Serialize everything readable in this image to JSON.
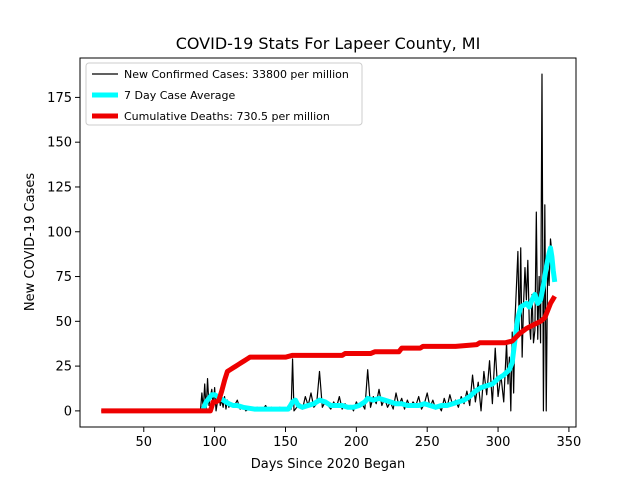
{
  "chart_data": {
    "type": "line",
    "title": "COVID-19 Stats For Lapeer County, MI",
    "xlabel": "Days Since 2020 Began",
    "ylabel": "New COVID-19 Cases",
    "xlim": [
      5,
      355
    ],
    "ylim": [
      -9,
      197
    ],
    "xticks": [
      50,
      100,
      150,
      200,
      250,
      300,
      350
    ],
    "yticks": [
      0,
      25,
      50,
      75,
      100,
      125,
      150,
      175
    ],
    "grid": false,
    "legend_position": "top-left",
    "series": [
      {
        "name": "New Confirmed Cases: 33800 per million",
        "color": "#000000",
        "width": 1.2,
        "points": [
          [
            20,
            0
          ],
          [
            50,
            0
          ],
          [
            88,
            0
          ],
          [
            89,
            1
          ],
          [
            90,
            0
          ],
          [
            91,
            10
          ],
          [
            92,
            1
          ],
          [
            93,
            15
          ],
          [
            94,
            0
          ],
          [
            95,
            18
          ],
          [
            96,
            3
          ],
          [
            97,
            8
          ],
          [
            98,
            12
          ],
          [
            99,
            2
          ],
          [
            100,
            13
          ],
          [
            101,
            0
          ],
          [
            102,
            5
          ],
          [
            103,
            9
          ],
          [
            104,
            3
          ],
          [
            105,
            6
          ],
          [
            106,
            2
          ],
          [
            107,
            8
          ],
          [
            108,
            1
          ],
          [
            109,
            6
          ],
          [
            110,
            2
          ],
          [
            112,
            4
          ],
          [
            114,
            3
          ],
          [
            116,
            6
          ],
          [
            118,
            1
          ],
          [
            120,
            3
          ],
          [
            122,
            0
          ],
          [
            124,
            1
          ],
          [
            126,
            2
          ],
          [
            128,
            0
          ],
          [
            130,
            2
          ],
          [
            132,
            0
          ],
          [
            134,
            1
          ],
          [
            136,
            3
          ],
          [
            138,
            0
          ],
          [
            140,
            2
          ],
          [
            142,
            1
          ],
          [
            144,
            0
          ],
          [
            146,
            2
          ],
          [
            148,
            1
          ],
          [
            150,
            0
          ],
          [
            152,
            3
          ],
          [
            154,
            1
          ],
          [
            155,
            29
          ],
          [
            156,
            0
          ],
          [
            158,
            2
          ],
          [
            160,
            4
          ],
          [
            162,
            1
          ],
          [
            164,
            8
          ],
          [
            166,
            3
          ],
          [
            168,
            10
          ],
          [
            170,
            2
          ],
          [
            172,
            4
          ],
          [
            174,
            22
          ],
          [
            176,
            2
          ],
          [
            178,
            5
          ],
          [
            180,
            3
          ],
          [
            182,
            1
          ],
          [
            184,
            5
          ],
          [
            186,
            2
          ],
          [
            188,
            8
          ],
          [
            190,
            1
          ],
          [
            192,
            4
          ],
          [
            194,
            2
          ],
          [
            196,
            3
          ],
          [
            198,
            0
          ],
          [
            200,
            5
          ],
          [
            202,
            2
          ],
          [
            204,
            4
          ],
          [
            206,
            1
          ],
          [
            208,
            23
          ],
          [
            210,
            2
          ],
          [
            212,
            8
          ],
          [
            214,
            4
          ],
          [
            216,
            12
          ],
          [
            218,
            3
          ],
          [
            220,
            7
          ],
          [
            222,
            2
          ],
          [
            224,
            5
          ],
          [
            226,
            1
          ],
          [
            228,
            10
          ],
          [
            230,
            3
          ],
          [
            232,
            7
          ],
          [
            234,
            1
          ],
          [
            236,
            6
          ],
          [
            238,
            2
          ],
          [
            240,
            5
          ],
          [
            242,
            3
          ],
          [
            244,
            8
          ],
          [
            246,
            1
          ],
          [
            248,
            4
          ],
          [
            250,
            10
          ],
          [
            252,
            2
          ],
          [
            254,
            6
          ],
          [
            256,
            1
          ],
          [
            258,
            3
          ],
          [
            260,
            0
          ],
          [
            262,
            7
          ],
          [
            264,
            2
          ],
          [
            266,
            9
          ],
          [
            268,
            3
          ],
          [
            270,
            6
          ],
          [
            272,
            2
          ],
          [
            274,
            8
          ],
          [
            276,
            4
          ],
          [
            278,
            11
          ],
          [
            280,
            3
          ],
          [
            282,
            20
          ],
          [
            284,
            5
          ],
          [
            286,
            16
          ],
          [
            288,
            0
          ],
          [
            290,
            22
          ],
          [
            292,
            9
          ],
          [
            294,
            28
          ],
          [
            296,
            4
          ],
          [
            298,
            35
          ],
          [
            300,
            8
          ],
          [
            302,
            20
          ],
          [
            304,
            5
          ],
          [
            306,
            38
          ],
          [
            307,
            15
          ],
          [
            308,
            30
          ],
          [
            309,
            0
          ],
          [
            310,
            44
          ],
          [
            311,
            10
          ],
          [
            312,
            52
          ],
          [
            313,
            70
          ],
          [
            314,
            89
          ],
          [
            315,
            45
          ],
          [
            316,
            91
          ],
          [
            317,
            30
          ],
          [
            318,
            60
          ],
          [
            319,
            80
          ],
          [
            320,
            62
          ],
          [
            321,
            84
          ],
          [
            322,
            50
          ],
          [
            323,
            40
          ],
          [
            324,
            65
          ],
          [
            325,
            38
          ],
          [
            326,
            45
          ],
          [
            327,
            111
          ],
          [
            328,
            40
          ],
          [
            329,
            75
          ],
          [
            330,
            38
          ],
          [
            331,
            188
          ],
          [
            332,
            0
          ],
          [
            333,
            115
          ],
          [
            334,
            0
          ],
          [
            335,
            83
          ],
          [
            336,
            70
          ],
          [
            337,
            96
          ],
          [
            338,
            88
          ]
        ]
      },
      {
        "name": "7 Day Case Average",
        "color": "#00ffff",
        "width": 5,
        "points": [
          [
            92,
            1
          ],
          [
            94,
            5
          ],
          [
            96,
            7
          ],
          [
            98,
            9
          ],
          [
            100,
            9
          ],
          [
            102,
            8
          ],
          [
            104,
            7
          ],
          [
            106,
            6
          ],
          [
            108,
            5
          ],
          [
            110,
            4
          ],
          [
            113,
            3
          ],
          [
            116,
            3
          ],
          [
            120,
            2
          ],
          [
            124,
            1.5
          ],
          [
            128,
            1
          ],
          [
            132,
            1
          ],
          [
            136,
            1
          ],
          [
            140,
            1
          ],
          [
            144,
            1
          ],
          [
            148,
            1
          ],
          [
            152,
            1
          ],
          [
            155,
            5
          ],
          [
            157,
            6
          ],
          [
            159,
            3
          ],
          [
            162,
            2
          ],
          [
            166,
            3
          ],
          [
            170,
            4
          ],
          [
            174,
            6
          ],
          [
            178,
            5
          ],
          [
            182,
            3
          ],
          [
            186,
            3
          ],
          [
            190,
            3
          ],
          [
            194,
            2
          ],
          [
            198,
            2
          ],
          [
            202,
            3
          ],
          [
            206,
            5
          ],
          [
            208,
            7
          ],
          [
            212,
            6
          ],
          [
            216,
            7
          ],
          [
            220,
            6
          ],
          [
            224,
            5
          ],
          [
            228,
            4
          ],
          [
            232,
            4
          ],
          [
            236,
            3
          ],
          [
            240,
            3
          ],
          [
            244,
            3
          ],
          [
            248,
            4
          ],
          [
            252,
            3
          ],
          [
            256,
            2
          ],
          [
            260,
            3
          ],
          [
            264,
            3
          ],
          [
            268,
            4
          ],
          [
            272,
            5
          ],
          [
            276,
            6
          ],
          [
            280,
            8
          ],
          [
            284,
            11
          ],
          [
            288,
            13
          ],
          [
            292,
            14
          ],
          [
            296,
            15
          ],
          [
            300,
            18
          ],
          [
            304,
            20
          ],
          [
            308,
            23
          ],
          [
            310,
            27
          ],
          [
            312,
            40
          ],
          [
            314,
            52
          ],
          [
            316,
            58
          ],
          [
            318,
            59
          ],
          [
            320,
            60
          ],
          [
            322,
            58
          ],
          [
            324,
            62
          ],
          [
            326,
            65
          ],
          [
            328,
            60
          ],
          [
            330,
            62
          ],
          [
            332,
            70
          ],
          [
            334,
            80
          ],
          [
            336,
            88
          ],
          [
            337,
            91
          ],
          [
            338,
            86
          ],
          [
            339,
            78
          ],
          [
            340,
            72
          ]
        ]
      },
      {
        "name": "Cumulative Deaths: 730.5 per million",
        "color": "#ee0000",
        "width": 5,
        "points": [
          [
            20,
            0
          ],
          [
            60,
            0
          ],
          [
            80,
            0
          ],
          [
            93,
            0
          ],
          [
            97,
            0
          ],
          [
            99,
            5
          ],
          [
            101,
            5
          ],
          [
            103,
            6
          ],
          [
            105,
            11
          ],
          [
            107,
            17
          ],
          [
            109,
            22
          ],
          [
            111,
            23
          ],
          [
            113,
            24
          ],
          [
            115,
            25
          ],
          [
            117,
            26
          ],
          [
            119,
            27
          ],
          [
            121,
            28
          ],
          [
            123,
            29
          ],
          [
            125,
            30
          ],
          [
            130,
            30
          ],
          [
            140,
            30
          ],
          [
            150,
            30
          ],
          [
            155,
            31
          ],
          [
            170,
            31
          ],
          [
            190,
            31
          ],
          [
            192,
            32
          ],
          [
            208,
            32
          ],
          [
            210,
            32
          ],
          [
            213,
            33
          ],
          [
            230,
            33
          ],
          [
            232,
            35
          ],
          [
            245,
            35
          ],
          [
            247,
            36
          ],
          [
            270,
            36
          ],
          [
            285,
            37
          ],
          [
            287,
            38
          ],
          [
            300,
            38
          ],
          [
            305,
            38
          ],
          [
            310,
            39
          ],
          [
            315,
            43
          ],
          [
            320,
            46
          ],
          [
            325,
            48
          ],
          [
            330,
            50
          ],
          [
            333,
            52
          ],
          [
            335,
            56
          ],
          [
            337,
            60
          ],
          [
            340,
            64
          ]
        ]
      }
    ]
  }
}
